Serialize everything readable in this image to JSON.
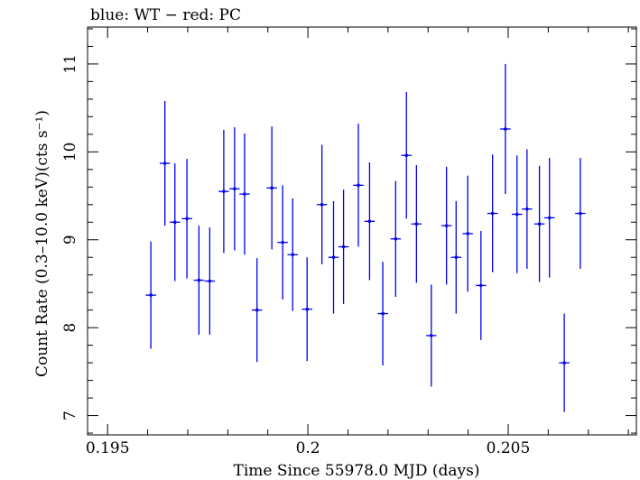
{
  "chart_data": {
    "type": "scatter",
    "title": "blue: WT − red: PC",
    "xlabel": "Time Since 55978.0 MJD (days)",
    "ylabel": "Count Rate (0.3–10.0 keV)(cts s⁻¹)",
    "xlim": [
      0.1945,
      0.2082
    ],
    "ylim": [
      6.78,
      11.42
    ],
    "xticks": [
      {
        "value": 0.195,
        "label": "0.195"
      },
      {
        "value": 0.2,
        "label": "0.2"
      },
      {
        "value": 0.205,
        "label": "0.205"
      }
    ],
    "yticks": [
      {
        "value": 7,
        "label": "7"
      },
      {
        "value": 8,
        "label": "8"
      },
      {
        "value": 9,
        "label": "9"
      },
      {
        "value": 10,
        "label": "10"
      },
      {
        "value": 11,
        "label": "11"
      }
    ],
    "grid": false,
    "series": [
      {
        "color": "#0000ee",
        "points": [
          {
            "x": 0.19608,
            "xerr": 0.00013,
            "y": 8.37,
            "yerr": 0.61
          },
          {
            "x": 0.19643,
            "xerr": 0.00013,
            "y": 9.87,
            "yerr": 0.71
          },
          {
            "x": 0.19668,
            "xerr": 0.00013,
            "y": 9.2,
            "yerr": 0.67
          },
          {
            "x": 0.19698,
            "xerr": 0.00013,
            "y": 9.24,
            "yerr": 0.68
          },
          {
            "x": 0.19728,
            "xerr": 0.00013,
            "y": 8.54,
            "yerr": 0.62
          },
          {
            "x": 0.19755,
            "xerr": 0.00013,
            "y": 8.53,
            "yerr": 0.61
          },
          {
            "x": 0.1979,
            "xerr": 0.00013,
            "y": 9.55,
            "yerr": 0.7
          },
          {
            "x": 0.19817,
            "xerr": 0.00013,
            "y": 9.58,
            "yerr": 0.7
          },
          {
            "x": 0.19842,
            "xerr": 0.00013,
            "y": 9.52,
            "yerr": 0.69
          },
          {
            "x": 0.19873,
            "xerr": 0.00013,
            "y": 8.2,
            "yerr": 0.59
          },
          {
            "x": 0.1991,
            "xerr": 0.00013,
            "y": 9.59,
            "yerr": 0.7
          },
          {
            "x": 0.19937,
            "xerr": 0.00013,
            "y": 8.97,
            "yerr": 0.65
          },
          {
            "x": 0.19962,
            "xerr": 0.00013,
            "y": 8.83,
            "yerr": 0.64
          },
          {
            "x": 0.19998,
            "xerr": 0.00013,
            "y": 8.21,
            "yerr": 0.59
          },
          {
            "x": 0.20035,
            "xerr": 0.00013,
            "y": 9.4,
            "yerr": 0.68
          },
          {
            "x": 0.20064,
            "xerr": 0.00013,
            "y": 8.8,
            "yerr": 0.64
          },
          {
            "x": 0.20089,
            "xerr": 0.00013,
            "y": 8.92,
            "yerr": 0.65
          },
          {
            "x": 0.20126,
            "xerr": 0.00013,
            "y": 9.62,
            "yerr": 0.7
          },
          {
            "x": 0.20154,
            "xerr": 0.00013,
            "y": 9.21,
            "yerr": 0.67
          },
          {
            "x": 0.20187,
            "xerr": 0.00013,
            "y": 8.16,
            "yerr": 0.59
          },
          {
            "x": 0.20219,
            "xerr": 0.00013,
            "y": 9.01,
            "yerr": 0.66
          },
          {
            "x": 0.20246,
            "xerr": 0.00013,
            "y": 9.96,
            "yerr": 0.72
          },
          {
            "x": 0.20271,
            "xerr": 0.00013,
            "y": 9.18,
            "yerr": 0.67
          },
          {
            "x": 0.20308,
            "xerr": 0.00013,
            "y": 7.91,
            "yerr": 0.58
          },
          {
            "x": 0.20346,
            "xerr": 0.00013,
            "y": 9.16,
            "yerr": 0.67
          },
          {
            "x": 0.2037,
            "xerr": 0.00013,
            "y": 8.8,
            "yerr": 0.64
          },
          {
            "x": 0.20399,
            "xerr": 0.00013,
            "y": 9.07,
            "yerr": 0.66
          },
          {
            "x": 0.20432,
            "xerr": 0.00013,
            "y": 8.48,
            "yerr": 0.62
          },
          {
            "x": 0.20461,
            "xerr": 0.00013,
            "y": 9.3,
            "yerr": 0.67
          },
          {
            "x": 0.20493,
            "xerr": 0.00013,
            "y": 10.26,
            "yerr": 0.74
          },
          {
            "x": 0.20522,
            "xerr": 0.00013,
            "y": 9.29,
            "yerr": 0.67
          },
          {
            "x": 0.20547,
            "xerr": 0.00013,
            "y": 9.35,
            "yerr": 0.68
          },
          {
            "x": 0.20578,
            "xerr": 0.00013,
            "y": 9.18,
            "yerr": 0.66
          },
          {
            "x": 0.20603,
            "xerr": 0.00013,
            "y": 9.25,
            "yerr": 0.68
          },
          {
            "x": 0.2064,
            "xerr": 0.00013,
            "y": 7.6,
            "yerr": 0.56
          },
          {
            "x": 0.2068,
            "xerr": 0.00013,
            "y": 9.3,
            "yerr": 0.63
          }
        ]
      }
    ]
  }
}
